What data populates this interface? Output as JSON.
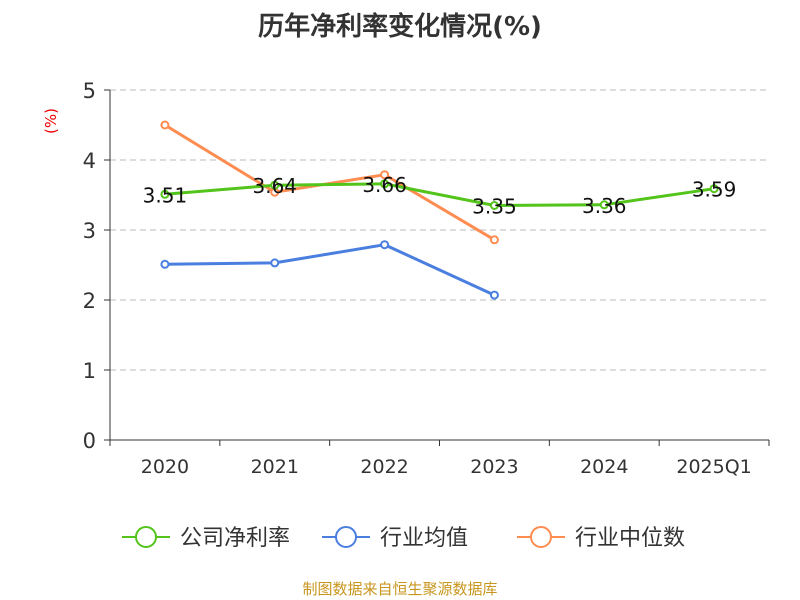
{
  "chart_data": {
    "type": "line",
    "title": "历年净利率变化情况(%)",
    "ylabel": "(%)",
    "xlabel": "",
    "categories": [
      "2020",
      "2021",
      "2022",
      "2023",
      "2024",
      "2025Q1"
    ],
    "ylim": [
      0,
      5
    ],
    "yticks": [
      "0",
      "1",
      "2",
      "3",
      "4",
      "5"
    ],
    "grid": true,
    "legend_position": "bottom",
    "series": [
      {
        "name": "公司净利率",
        "color": "#52c41a",
        "values": [
          3.51,
          3.64,
          3.66,
          3.35,
          3.36,
          3.59
        ],
        "labels": [
          "3.51",
          "3.64",
          "3.66",
          "3.35",
          "3.36",
          "3.59"
        ]
      },
      {
        "name": "行业均值",
        "color": "#4a7fe0",
        "values": [
          2.51,
          2.53,
          2.79,
          2.07,
          null,
          null
        ]
      },
      {
        "name": "行业中位数",
        "color": "#ff8c50",
        "values": [
          4.5,
          3.54,
          3.79,
          2.86,
          null,
          null
        ]
      }
    ]
  },
  "footer": "制图数据来自恒生聚源数据库"
}
